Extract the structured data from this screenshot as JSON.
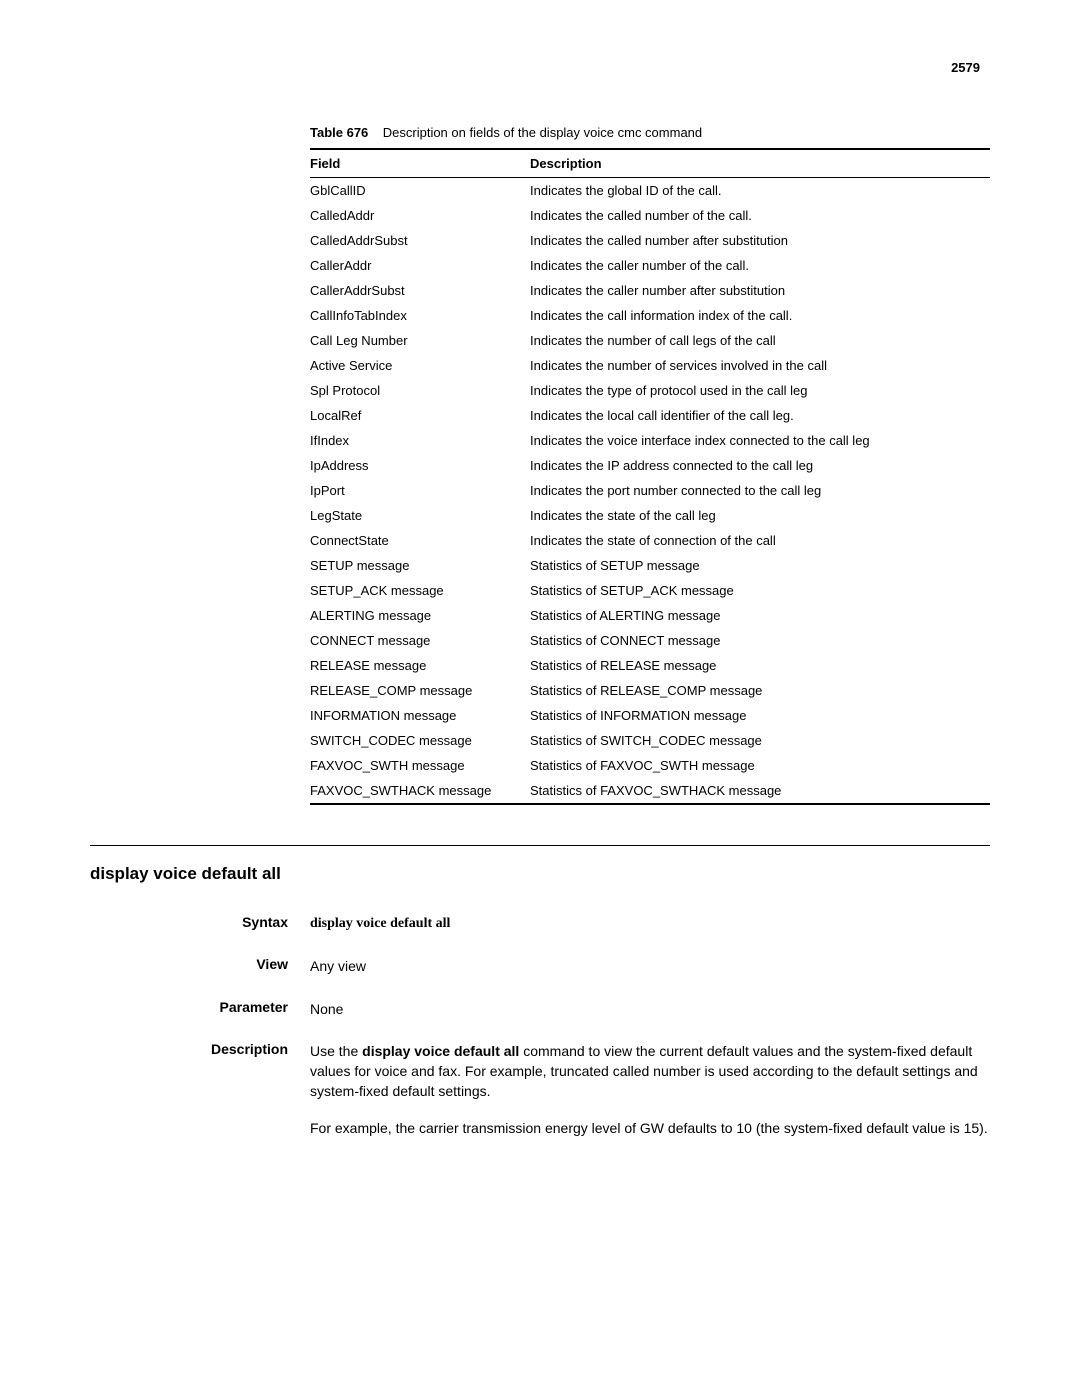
{
  "page_number": "2579",
  "table": {
    "caption_label": "Table 676",
    "caption_text": "Description on fields of the display voice cmc command",
    "header_field": "Field",
    "header_description": "Description",
    "rows": [
      {
        "field": "GblCallID",
        "description": "Indicates the global ID of the call."
      },
      {
        "field": "CalledAddr",
        "description": "Indicates the called number of the call."
      },
      {
        "field": "CalledAddrSubst",
        "description": "Indicates the called number after substitution"
      },
      {
        "field": "CallerAddr",
        "description": "Indicates the caller number of the call."
      },
      {
        "field": "CallerAddrSubst",
        "description": "Indicates the caller number after substitution"
      },
      {
        "field": "CallInfoTabIndex",
        "description": "Indicates the call information index of the call."
      },
      {
        "field": "Call Leg Number",
        "description": "Indicates the number of call legs of the call"
      },
      {
        "field": "Active Service",
        "description": "Indicates the number of services involved in the call"
      },
      {
        "field": "Spl Protocol",
        "description": "Indicates the type of protocol used in the call leg"
      },
      {
        "field": "LocalRef",
        "description": "Indicates the local call identifier of the call leg."
      },
      {
        "field": "IfIndex",
        "description": "Indicates the voice interface index connected to the call leg"
      },
      {
        "field": "IpAddress",
        "description": "Indicates the IP address connected to the call leg"
      },
      {
        "field": "IpPort",
        "description": "Indicates the port number connected to the call leg"
      },
      {
        "field": "LegState",
        "description": "Indicates the state of the call leg"
      },
      {
        "field": "ConnectState",
        "description": "Indicates the state of connection of the call"
      },
      {
        "field": "SETUP message",
        "description": "Statistics of SETUP message"
      },
      {
        "field": "SETUP_ACK message",
        "description": "Statistics of SETUP_ACK message"
      },
      {
        "field": "ALERTING message",
        "description": "Statistics of ALERTING message"
      },
      {
        "field": "CONNECT message",
        "description": "Statistics of CONNECT message"
      },
      {
        "field": "RELEASE message",
        "description": "Statistics of RELEASE message"
      },
      {
        "field": "RELEASE_COMP message",
        "description": "Statistics of RELEASE_COMP message"
      },
      {
        "field": "INFORMATION message",
        "description": "Statistics of INFORMATION message"
      },
      {
        "field": "SWITCH_CODEC message",
        "description": "Statistics of SWITCH_CODEC message"
      },
      {
        "field": "FAXVOC_SWTH message",
        "description": "Statistics of FAXVOC_SWTH message"
      },
      {
        "field": "FAXVOC_SWTHACK message",
        "description": "Statistics of FAXVOC_SWTHACK message"
      }
    ]
  },
  "section": {
    "heading": "display voice default all",
    "syntax_label": "Syntax",
    "syntax_value": "display voice default all",
    "view_label": "View",
    "view_value": "Any view",
    "parameter_label": "Parameter",
    "parameter_value": "None",
    "description_label": "Description",
    "description_prefix": "Use the ",
    "description_cmd": "display voice default all",
    "description_suffix": " command to view the current default values and the system-fixed default values for voice and fax. For example, truncated called number is used according to the default settings and system-fixed default settings.",
    "description_para2": "For example, the carrier transmission energy level of GW defaults to 10 (the system-fixed default value is 15)."
  }
}
